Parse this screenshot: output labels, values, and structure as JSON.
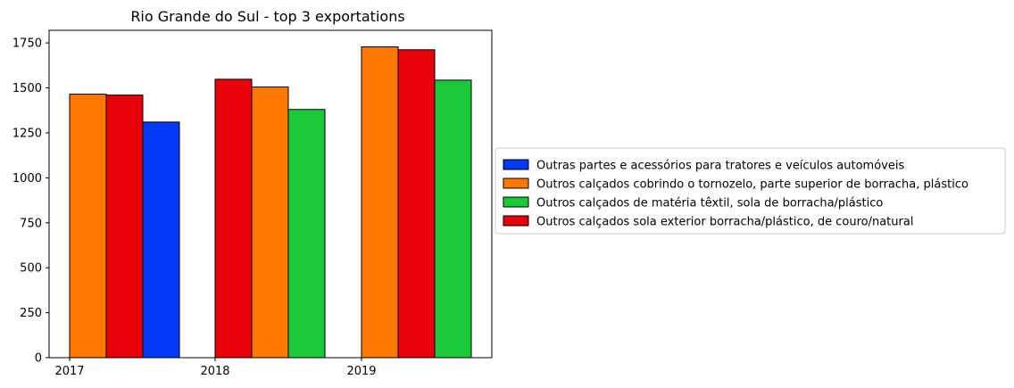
{
  "chart_data": {
    "type": "bar",
    "title": "Rio Grande do Sul - top 3 exportations",
    "xlabel": "",
    "ylabel": "",
    "ylim": [
      0,
      1820
    ],
    "yticks": [
      0,
      250,
      500,
      750,
      1000,
      1250,
      1500,
      1750
    ],
    "grid": false,
    "legend_position": "right",
    "categories": [
      "2017",
      "2018",
      "2019"
    ],
    "series": [
      {
        "name": "Outras partes e acessórios para tratores e veículos automóveis",
        "color": "#0339f8"
      },
      {
        "name": "Outros calçados cobrindo o tornozelo, parte superior de borracha, plástico",
        "color": "#ff7900"
      },
      {
        "name": "Outros calçados de matéria têxtil, sola de borracha/plástico",
        "color": "#1ac93a"
      },
      {
        "name": "Outros calçados sola exterior borracha/plástico, de couro/natural",
        "color": "#e8000b"
      }
    ],
    "bars": [
      {
        "category": "2017",
        "series": 1,
        "value": 1465
      },
      {
        "category": "2017",
        "series": 3,
        "value": 1460
      },
      {
        "category": "2017",
        "series": 0,
        "value": 1310
      },
      {
        "category": "2018",
        "series": 3,
        "value": 1548
      },
      {
        "category": "2018",
        "series": 1,
        "value": 1505
      },
      {
        "category": "2018",
        "series": 2,
        "value": 1380
      },
      {
        "category": "2019",
        "series": 1,
        "value": 1728
      },
      {
        "category": "2019",
        "series": 3,
        "value": 1712
      },
      {
        "category": "2019",
        "series": 2,
        "value": 1543
      }
    ]
  }
}
